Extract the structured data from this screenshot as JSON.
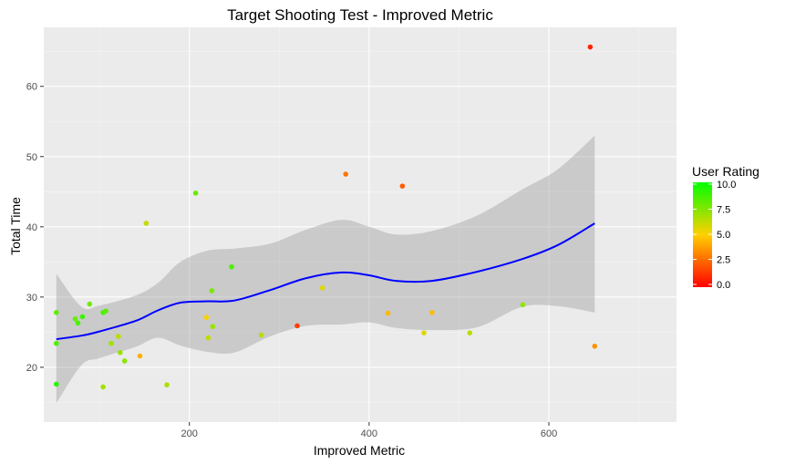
{
  "chart_data": {
    "type": "scatter",
    "title": "Target Shooting Test - Improved Metric",
    "xlabel": "Improved Metric",
    "ylabel": "Total Time",
    "xlim": [
      38,
      742
    ],
    "ylim": [
      12.2,
      68.4
    ],
    "x_ticks": [
      200,
      400,
      600
    ],
    "y_ticks": [
      20,
      30,
      40,
      50,
      60
    ],
    "grid": true,
    "panel_background": "#ebebeb",
    "grid_color": "#ffffff",
    "legend": {
      "title": "User Rating",
      "position": "right",
      "ticks": [
        10.0,
        7.5,
        5.0,
        2.5,
        0.0
      ],
      "tick_labels": [
        "10.0",
        "7.5",
        "5.0",
        "2.5",
        "0.0"
      ],
      "gradient": [
        "#ff0000",
        "#00ff00"
      ]
    },
    "points": [
      {
        "x": 52,
        "y": 27.8,
        "rating": 8.2
      },
      {
        "x": 52,
        "y": 23.4,
        "rating": 8.5
      },
      {
        "x": 52,
        "y": 17.6,
        "rating": 9.3
      },
      {
        "x": 73,
        "y": 26.9,
        "rating": 8.0
      },
      {
        "x": 76,
        "y": 26.3,
        "rating": 8.6
      },
      {
        "x": 81,
        "y": 27.2,
        "rating": 8.9
      },
      {
        "x": 89,
        "y": 29.0,
        "rating": 7.8
      },
      {
        "x": 104,
        "y": 27.8,
        "rating": 8.6
      },
      {
        "x": 107,
        "y": 28.0,
        "rating": 8.2
      },
      {
        "x": 104,
        "y": 17.2,
        "rating": 6.8
      },
      {
        "x": 113,
        "y": 23.4,
        "rating": 6.9
      },
      {
        "x": 121,
        "y": 24.4,
        "rating": 6.4
      },
      {
        "x": 123,
        "y": 22.1,
        "rating": 7.0
      },
      {
        "x": 128,
        "y": 20.9,
        "rating": 7.3
      },
      {
        "x": 145,
        "y": 21.6,
        "rating": 4.2
      },
      {
        "x": 152,
        "y": 40.5,
        "rating": 6.2
      },
      {
        "x": 175,
        "y": 17.5,
        "rating": 6.6
      },
      {
        "x": 207,
        "y": 44.8,
        "rating": 8.0
      },
      {
        "x": 219,
        "y": 27.1,
        "rating": 5.1
      },
      {
        "x": 221,
        "y": 24.2,
        "rating": 6.2
      },
      {
        "x": 225,
        "y": 30.9,
        "rating": 7.6
      },
      {
        "x": 226,
        "y": 25.8,
        "rating": 7.0
      },
      {
        "x": 247,
        "y": 34.3,
        "rating": 8.5
      },
      {
        "x": 280,
        "y": 24.6,
        "rating": 6.4
      },
      {
        "x": 320,
        "y": 25.9,
        "rating": 1.5
      },
      {
        "x": 348,
        "y": 31.3,
        "rating": 5.6
      },
      {
        "x": 374,
        "y": 47.5,
        "rating": 2.8
      },
      {
        "x": 421,
        "y": 27.7,
        "rating": 4.4
      },
      {
        "x": 437,
        "y": 45.8,
        "rating": 2.2
      },
      {
        "x": 461,
        "y": 24.9,
        "rating": 5.6
      },
      {
        "x": 470,
        "y": 27.8,
        "rating": 4.5
      },
      {
        "x": 512,
        "y": 24.9,
        "rating": 6.4
      },
      {
        "x": 571,
        "y": 28.9,
        "rating": 7.2
      },
      {
        "x": 646,
        "y": 65.6,
        "rating": 0.8
      },
      {
        "x": 651,
        "y": 23.0,
        "rating": 3.5
      }
    ],
    "smooth": {
      "color": "#0000ff",
      "x": [
        52,
        80,
        100,
        140,
        165,
        190,
        220,
        250,
        290,
        330,
        370,
        400,
        430,
        470,
        520,
        570,
        610,
        651
      ],
      "y": [
        24.0,
        24.5,
        25.1,
        26.6,
        28.1,
        29.2,
        29.4,
        29.5,
        31.0,
        32.7,
        33.5,
        33.1,
        32.3,
        32.3,
        33.6,
        35.4,
        37.4,
        40.5
      ],
      "ci_upper": [
        33.3,
        28.6,
        28.8,
        30.2,
        32.0,
        35.0,
        36.6,
        36.9,
        37.6,
        39.6,
        41.0,
        40.0,
        38.9,
        39.4,
        41.6,
        45.3,
        48.2,
        53.0
      ],
      "ci_lower": [
        14.9,
        20.3,
        21.3,
        22.9,
        24.2,
        23.1,
        22.2,
        22.1,
        24.4,
        25.9,
        26.1,
        26.4,
        25.6,
        25.3,
        25.7,
        28.6,
        28.7,
        27.8
      ]
    }
  }
}
